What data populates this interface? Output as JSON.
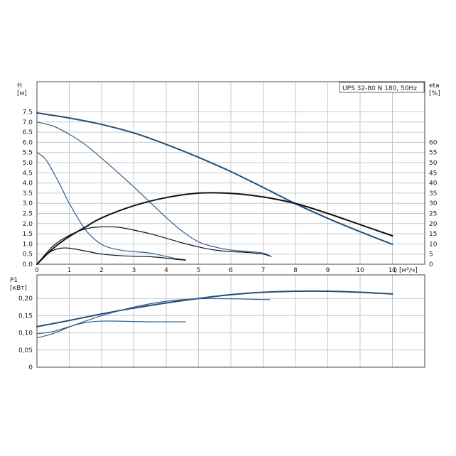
{
  "chart_data": [
    {
      "type": "line",
      "title": "UPS 32-80 N 180, 50Hz",
      "xlabel": "Q [м³/ч]",
      "ylabel": "H\n[м]",
      "y2label": "eta\n[%]",
      "xlim": [
        0,
        12
      ],
      "ylim": [
        0,
        8.5
      ],
      "y2lim": [
        0,
        85
      ],
      "x_ticks": [
        0,
        1,
        2,
        3,
        4,
        5,
        6,
        7,
        8,
        9,
        10,
        11
      ],
      "y_ticks": [
        "0.0",
        "0.5",
        "1.0",
        "1.5",
        "2.0",
        "2.5",
        "3.0",
        "3.5",
        "4.0",
        "4.5",
        "5.0",
        "5.5",
        "6.0",
        "6.5",
        "7.0",
        "7.5"
      ],
      "y2_ticks": [
        "0",
        "5",
        "10",
        "15",
        "20",
        "25",
        "30",
        "35",
        "40",
        "45",
        "50",
        "55",
        "60"
      ],
      "grid": true,
      "series": [
        {
          "role": "H speed 3",
          "axis": "left",
          "color": "#1f4e79",
          "x": [
            0,
            1,
            2,
            3,
            4,
            5,
            6,
            7,
            8,
            9,
            10,
            11
          ],
          "y": [
            7.45,
            7.2,
            6.88,
            6.46,
            5.9,
            5.26,
            4.56,
            3.78,
            2.98,
            2.26,
            1.6,
            0.98
          ]
        },
        {
          "role": "H speed 2",
          "axis": "left",
          "color": "#2f5f8f",
          "x": [
            0,
            0.5,
            1,
            1.5,
            2,
            2.5,
            3,
            3.5,
            4,
            4.5,
            5,
            5.5,
            6,
            6.5,
            7,
            7.2
          ],
          "y": [
            7.0,
            6.8,
            6.4,
            5.88,
            5.22,
            4.52,
            3.8,
            3.05,
            2.3,
            1.62,
            1.1,
            0.85,
            0.7,
            0.63,
            0.55,
            0.42
          ]
        },
        {
          "role": "H speed 1",
          "axis": "left",
          "color": "#2f5f8f",
          "x": [
            0,
            0.25,
            0.5,
            0.75,
            1,
            1.5,
            2,
            2.5,
            3,
            3.5,
            4,
            4.3,
            4.6
          ],
          "y": [
            5.5,
            5.2,
            4.55,
            3.8,
            3.0,
            1.7,
            0.98,
            0.72,
            0.62,
            0.55,
            0.38,
            0.28,
            0.22
          ]
        },
        {
          "role": "eta speed 3",
          "axis": "right",
          "color": "#111111",
          "x": [
            0,
            0.5,
            1,
            1.5,
            2,
            3,
            4,
            5,
            6,
            7,
            8,
            9,
            10,
            11
          ],
          "y": [
            0,
            7.8,
            13.6,
            18.3,
            22.8,
            28.8,
            32.8,
            35.0,
            34.9,
            33.1,
            29.9,
            25.0,
            19.5,
            14.0
          ]
        },
        {
          "role": "eta speed 2",
          "axis": "right",
          "color": "#111111",
          "x": [
            0,
            0.5,
            1,
            1.5,
            2,
            2.5,
            3,
            3.5,
            4,
            4.5,
            5,
            5.5,
            6,
            6.5,
            7,
            7.25
          ],
          "y": [
            0,
            9.0,
            14.2,
            17.4,
            18.4,
            18.2,
            16.8,
            15.0,
            12.8,
            10.5,
            8.5,
            7.0,
            6.2,
            5.8,
            5.0,
            3.8
          ]
        },
        {
          "role": "eta speed 1",
          "axis": "right",
          "color": "#111111",
          "x": [
            0,
            0.25,
            0.5,
            0.75,
            1,
            1.5,
            2,
            2.5,
            3,
            3.5,
            4,
            4.3,
            4.6
          ],
          "y": [
            0,
            4.2,
            6.8,
            7.9,
            7.9,
            6.5,
            5.0,
            4.3,
            3.9,
            3.7,
            3.0,
            2.4,
            2.0
          ]
        }
      ]
    },
    {
      "type": "line",
      "xlabel": "",
      "ylabel": "P1\n[кВт]",
      "xlim": [
        0,
        12
      ],
      "ylim": [
        0,
        0.25
      ],
      "y_ticks": [
        "0",
        "0,05",
        "0,10",
        "0,15",
        "0,20"
      ],
      "y_tick_values": [
        0,
        0.05,
        0.1,
        0.15,
        0.2
      ],
      "grid": true,
      "series": [
        {
          "role": "P1 speed 3",
          "color": "#1f4e79",
          "x": [
            0,
            1,
            2,
            3,
            4,
            5,
            6,
            7,
            8,
            9,
            10,
            11
          ],
          "y": [
            0.118,
            0.136,
            0.155,
            0.172,
            0.187,
            0.2,
            0.211,
            0.218,
            0.221,
            0.221,
            0.218,
            0.213
          ]
        },
        {
          "role": "P1 speed 2",
          "color": "#2f5f8f",
          "x": [
            0,
            0.5,
            1,
            1.5,
            2,
            3,
            4,
            5,
            6,
            7,
            7.2
          ],
          "y": [
            0.085,
            0.098,
            0.117,
            0.134,
            0.15,
            0.175,
            0.192,
            0.199,
            0.199,
            0.197,
            0.197
          ]
        },
        {
          "role": "P1 speed 1",
          "color": "#2f5f8f",
          "x": [
            0,
            0.5,
            1,
            1.5,
            2,
            2.5,
            3,
            3.5,
            4,
            4.6
          ],
          "y": [
            0.097,
            0.104,
            0.118,
            0.13,
            0.134,
            0.134,
            0.133,
            0.132,
            0.132,
            0.132
          ]
        }
      ]
    }
  ]
}
